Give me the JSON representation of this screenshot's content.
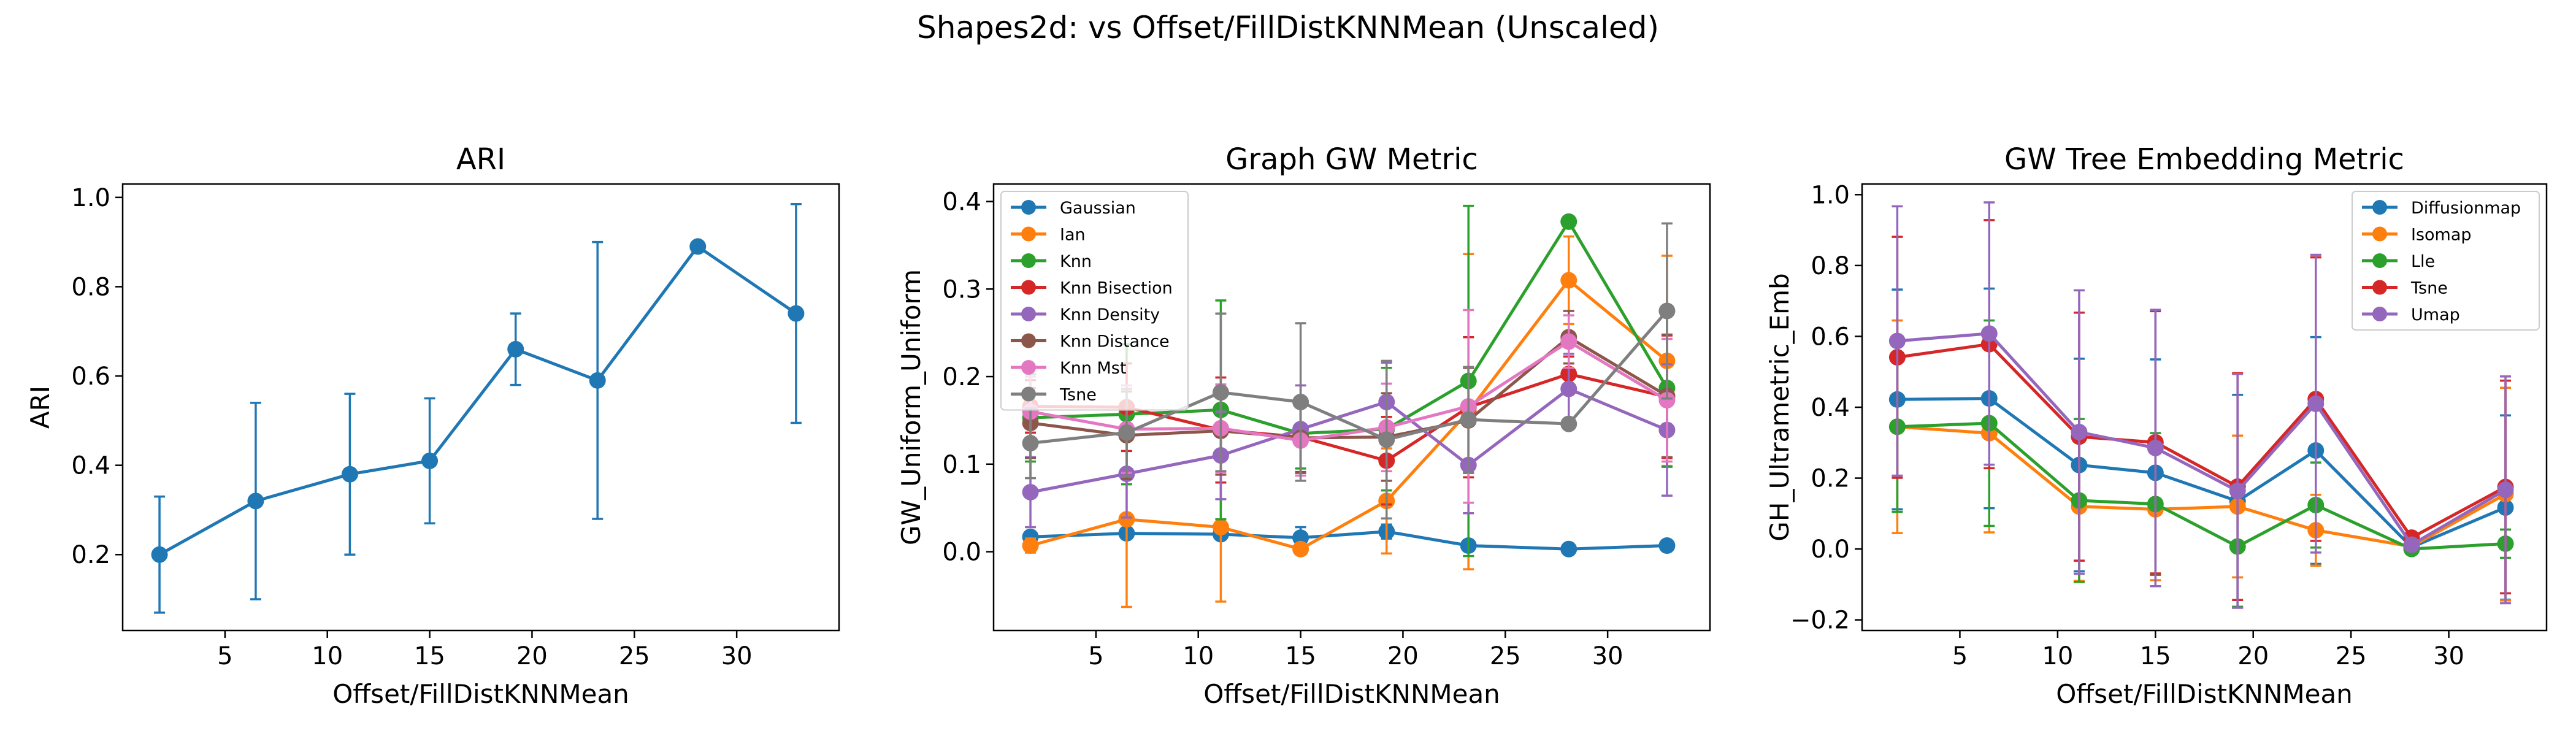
{
  "figure": {
    "suptitle": "Shapes2d: vs Offset/FillDistKNNMean (Unscaled)"
  },
  "chart_data": [
    {
      "type": "line",
      "title": "ARI",
      "xlabel": "Offset/FillDistKNNMean",
      "ylabel": "ARI",
      "x": [
        1.8,
        6.5,
        11.1,
        15.0,
        19.2,
        23.2,
        28.1,
        32.9
      ],
      "xlim": [
        0,
        35
      ],
      "ylim": [
        0.03,
        1.03
      ],
      "xticks": [
        5,
        10,
        15,
        20,
        25,
        30
      ],
      "yticks": [
        0.2,
        0.4,
        0.6,
        0.8,
        1.0
      ],
      "ytick_labels": [
        "0.2",
        "0.4",
        "0.6",
        "0.8",
        "1.0"
      ],
      "legend": null,
      "grid": false,
      "series": [
        {
          "name": "",
          "color": "#1f77b4",
          "values": [
            0.2,
            0.32,
            0.38,
            0.41,
            0.66,
            0.59,
            0.89,
            0.74
          ],
          "errors": [
            0.13,
            0.22,
            0.18,
            0.14,
            0.08,
            0.31,
            0.01,
            0.245
          ]
        }
      ]
    },
    {
      "type": "line",
      "title": "Graph GW Metric",
      "xlabel": "Offset/FillDistKNNMean",
      "ylabel": "GW_Uniform_Uniform",
      "x": [
        1.8,
        6.5,
        11.1,
        15.0,
        19.2,
        23.2,
        28.1,
        32.9
      ],
      "xlim": [
        0,
        35
      ],
      "ylim": [
        -0.09,
        0.42
      ],
      "xticks": [
        5,
        10,
        15,
        20,
        25,
        30
      ],
      "yticks": [
        0.0,
        0.1,
        0.2,
        0.3,
        0.4
      ],
      "ytick_labels": [
        "0.0",
        "0.1",
        "0.2",
        "0.3",
        "0.4"
      ],
      "legend": "upper-left",
      "grid": false,
      "series": [
        {
          "name": "Gaussian",
          "color": "#1f77b4",
          "values": [
            0.017,
            0.021,
            0.02,
            0.016,
            0.023,
            0.007,
            0.003,
            0.007
          ],
          "errors": [
            0.006,
            0.006,
            0.006,
            0.012,
            0.008,
            0.006,
            0.002,
            0.004
          ]
        },
        {
          "name": "Ian",
          "color": "#ff7f0e",
          "values": [
            0.007,
            0.037,
            0.028,
            0.003,
            0.058,
            0.16,
            0.31,
            0.218
          ],
          "errors": [
            0.008,
            0.1,
            0.085,
            0.004,
            0.06,
            0.18,
            0.05,
            0.12
          ]
        },
        {
          "name": "Knn",
          "color": "#2ca02c",
          "values": [
            0.153,
            0.157,
            0.162,
            0.135,
            0.14,
            0.195,
            0.377,
            0.187
          ],
          "errors": [
            0.05,
            0.08,
            0.125,
            0.04,
            0.07,
            0.2,
            0.005,
            0.09
          ]
        },
        {
          "name": "Knn Bisection",
          "color": "#d62728",
          "values": [
            0.166,
            0.165,
            0.139,
            0.131,
            0.104,
            0.165,
            0.203,
            0.177
          ],
          "errors": [
            0.03,
            0.05,
            0.06,
            0.04,
            0.05,
            0.08,
            0.02,
            0.07
          ]
        },
        {
          "name": "Knn Density",
          "color": "#9467bd",
          "values": [
            0.068,
            0.089,
            0.11,
            0.14,
            0.171,
            0.099,
            0.186,
            0.139
          ],
          "errors": [
            0.04,
            0.05,
            0.05,
            0.05,
            0.045,
            0.055,
            0.04,
            0.075
          ]
        },
        {
          "name": "Knn Distance",
          "color": "#8c564b",
          "values": [
            0.147,
            0.133,
            0.138,
            0.13,
            0.131,
            0.15,
            0.245,
            0.178
          ],
          "errors": [
            0.04,
            0.05,
            0.05,
            0.04,
            0.05,
            0.06,
            0.03,
            0.07
          ]
        },
        {
          "name": "Knn Mst",
          "color": "#e377c2",
          "values": [
            0.16,
            0.14,
            0.141,
            0.127,
            0.142,
            0.166,
            0.24,
            0.173
          ],
          "errors": [
            0.04,
            0.05,
            0.05,
            0.04,
            0.05,
            0.11,
            0.03,
            0.07
          ]
        },
        {
          "name": "Tsne",
          "color": "#7f7f7f",
          "values": [
            0.124,
            0.136,
            0.182,
            0.171,
            0.128,
            0.151,
            0.146,
            0.275
          ],
          "errors": [
            0.04,
            0.05,
            0.09,
            0.09,
            0.09,
            0.06,
            0.005,
            0.1
          ]
        }
      ]
    },
    {
      "type": "line",
      "title": "GW Tree Embedding Metric",
      "xlabel": "Offset/FillDistKNNMean",
      "ylabel": "GH_Ultrametric_Emb",
      "x": [
        1.8,
        6.5,
        11.1,
        15.0,
        19.2,
        23.2,
        28.1,
        32.9
      ],
      "xlim": [
        0,
        35
      ],
      "ylim": [
        -0.23,
        1.03
      ],
      "xticks": [
        5,
        10,
        15,
        20,
        25,
        30
      ],
      "yticks": [
        -0.2,
        0.0,
        0.2,
        0.4,
        0.6,
        0.8,
        1.0
      ],
      "ytick_labels": [
        "−0.2",
        "0.0",
        "0.2",
        "0.4",
        "0.6",
        "0.8",
        "1.0"
      ],
      "legend": "upper-right",
      "grid": false,
      "series": [
        {
          "name": "Diffusionmap",
          "color": "#1f77b4",
          "values": [
            0.422,
            0.425,
            0.237,
            0.215,
            0.135,
            0.278,
            0.005,
            0.117
          ],
          "errors": [
            0.31,
            0.31,
            0.3,
            0.32,
            0.3,
            0.32,
            0.005,
            0.26
          ]
        },
        {
          "name": "Isomap",
          "color": "#ff7f0e",
          "values": [
            0.345,
            0.327,
            0.12,
            0.112,
            0.12,
            0.053,
            0.007,
            0.155
          ],
          "errors": [
            0.3,
            0.28,
            0.21,
            0.2,
            0.2,
            0.1,
            0.005,
            0.3
          ]
        },
        {
          "name": "Lle",
          "color": "#2ca02c",
          "values": [
            0.345,
            0.355,
            0.137,
            0.127,
            0.007,
            0.124,
            0.0,
            0.015
          ],
          "errors": [
            0.24,
            0.29,
            0.23,
            0.2,
            0.17,
            0.12,
            0.005,
            0.04
          ]
        },
        {
          "name": "Tsne",
          "color": "#d62728",
          "values": [
            0.541,
            0.578,
            0.317,
            0.301,
            0.176,
            0.423,
            0.032,
            0.175
          ],
          "errors": [
            0.34,
            0.35,
            0.35,
            0.37,
            0.32,
            0.4,
            0.01,
            0.3
          ]
        },
        {
          "name": "Umap",
          "color": "#9467bd",
          "values": [
            0.587,
            0.608,
            0.33,
            0.285,
            0.164,
            0.41,
            0.012,
            0.167
          ],
          "errors": [
            0.38,
            0.37,
            0.4,
            0.39,
            0.33,
            0.42,
            0.01,
            0.32
          ]
        }
      ]
    }
  ]
}
